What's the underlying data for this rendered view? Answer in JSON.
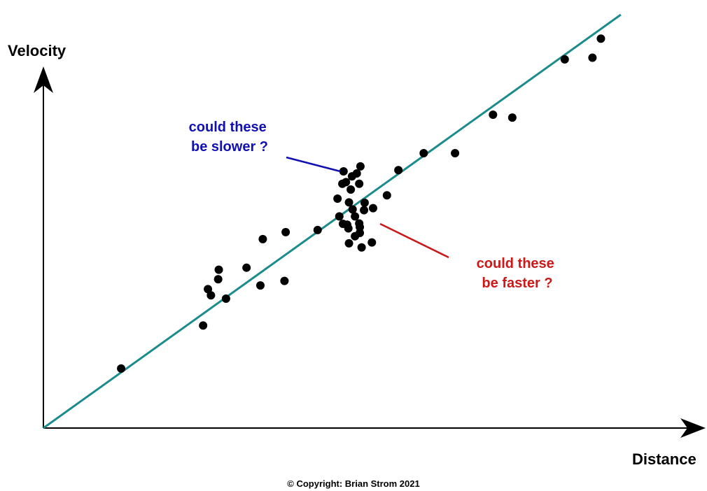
{
  "chart_data": {
    "type": "scatter",
    "title": "",
    "xlabel": "Distance",
    "ylabel": "Velocity",
    "xlim": [
      0,
      1000
    ],
    "ylim": [
      0,
      1000
    ],
    "grid": false,
    "axes_show_ticks": false,
    "points": [
      {
        "x": 129,
        "y": 144
      },
      {
        "x": 265,
        "y": 248
      },
      {
        "x": 273,
        "y": 336
      },
      {
        "x": 278,
        "y": 321
      },
      {
        "x": 290,
        "y": 360
      },
      {
        "x": 291,
        "y": 383
      },
      {
        "x": 303,
        "y": 313
      },
      {
        "x": 337,
        "y": 388
      },
      {
        "x": 360,
        "y": 345
      },
      {
        "x": 364,
        "y": 457
      },
      {
        "x": 400,
        "y": 356
      },
      {
        "x": 402,
        "y": 474
      },
      {
        "x": 455,
        "y": 479
      },
      {
        "x": 488,
        "y": 555
      },
      {
        "x": 491,
        "y": 512
      },
      {
        "x": 496,
        "y": 591
      },
      {
        "x": 497,
        "y": 494
      },
      {
        "x": 498,
        "y": 621
      },
      {
        "x": 502,
        "y": 595
      },
      {
        "x": 504,
        "y": 492
      },
      {
        "x": 506,
        "y": 483
      },
      {
        "x": 507,
        "y": 447
      },
      {
        "x": 507,
        "y": 546
      },
      {
        "x": 510,
        "y": 577
      },
      {
        "x": 512,
        "y": 609
      },
      {
        "x": 513,
        "y": 529
      },
      {
        "x": 517,
        "y": 464
      },
      {
        "x": 517,
        "y": 512
      },
      {
        "x": 520,
        "y": 616
      },
      {
        "x": 524,
        "y": 495
      },
      {
        "x": 525,
        "y": 486
      },
      {
        "x": 524,
        "y": 591
      },
      {
        "x": 526,
        "y": 633
      },
      {
        "x": 525,
        "y": 472
      },
      {
        "x": 528,
        "y": 437
      },
      {
        "x": 532,
        "y": 527
      },
      {
        "x": 533,
        "y": 545
      },
      {
        "x": 545,
        "y": 449
      },
      {
        "x": 547,
        "y": 532
      },
      {
        "x": 570,
        "y": 563
      },
      {
        "x": 589,
        "y": 624
      },
      {
        "x": 631,
        "y": 665
      },
      {
        "x": 683,
        "y": 665
      },
      {
        "x": 746,
        "y": 758
      },
      {
        "x": 778,
        "y": 751
      },
      {
        "x": 865,
        "y": 892
      },
      {
        "x": 911,
        "y": 896
      },
      {
        "x": 925,
        "y": 942
      }
    ],
    "fit_line": {
      "x": [
        0,
        958
      ],
      "y": [
        0,
        1000
      ],
      "color": "#1b8b8b"
    },
    "point_color": "#000000",
    "axis_color": "#000000",
    "annotations": [
      {
        "id": "slower",
        "lines": [
          "could these",
          "be slower ?"
        ],
        "color": "#1010b4"
      },
      {
        "id": "faster",
        "lines": [
          "could these",
          "be faster  ?"
        ],
        "color": "#cc1818"
      }
    ]
  },
  "footer": {
    "copyright": "© Copyright:  Brian Strom  2021"
  }
}
